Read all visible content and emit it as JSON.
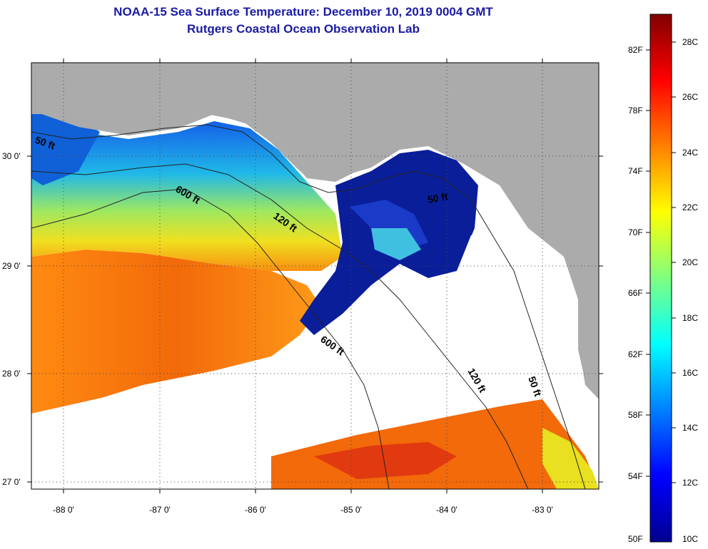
{
  "header": {
    "title": "NOAA-15 Sea Surface Temperature:  December 10, 2019 0004 GMT",
    "subtitle": "Rutgers Coastal Ocean Observation Lab"
  },
  "map": {
    "lon_ticks": [
      {
        "value": -88,
        "label": "-88 0'"
      },
      {
        "value": -87,
        "label": "-87 0'"
      },
      {
        "value": -86,
        "label": "-86 0'"
      },
      {
        "value": -85,
        "label": "-85 0'"
      },
      {
        "value": -84,
        "label": "-84 0'"
      },
      {
        "value": -83,
        "label": "-83 0'"
      }
    ],
    "lat_ticks": [
      {
        "value": 30,
        "label": "30 0'"
      },
      {
        "value": 29,
        "label": "29 0'"
      },
      {
        "value": 28,
        "label": "28 0'"
      },
      {
        "value": 27,
        "label": "27 0'"
      }
    ],
    "isobath_labels": [
      {
        "text": "50 ft"
      },
      {
        "text": "600 ft"
      },
      {
        "text": "120 ft"
      },
      {
        "text": "50 ft"
      },
      {
        "text": "600 ft"
      },
      {
        "text": "120 ft"
      },
      {
        "text": "50 ft"
      }
    ],
    "colors": {
      "land": "#ababab",
      "cloud": "#ffffff",
      "warm": "#f57a10",
      "cool": "#0a1e9a"
    }
  },
  "colorbar": {
    "fahrenheit_labels": [
      "82F",
      "78F",
      "74F",
      "70F",
      "66F",
      "62F",
      "58F",
      "54F",
      "50F"
    ],
    "celsius_labels": [
      "28C",
      "26C",
      "24C",
      "22C",
      "20C",
      "18C",
      "16C",
      "14C",
      "12C",
      "10C"
    ],
    "colormap": [
      "#00008f",
      "#0000ff",
      "#0080ff",
      "#00ffff",
      "#80ff80",
      "#ffff00",
      "#ff8000",
      "#ff0000",
      "#800000"
    ]
  }
}
